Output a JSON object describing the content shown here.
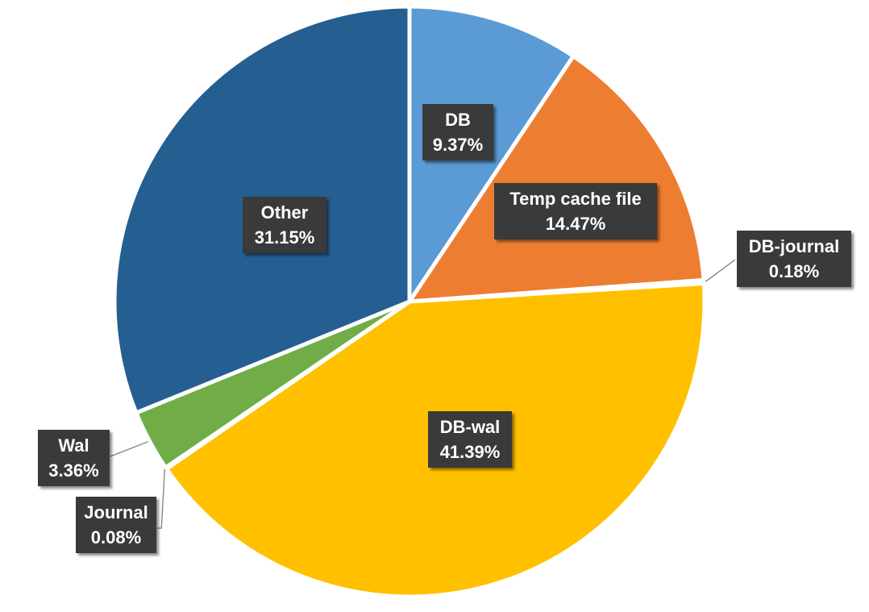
{
  "chart_data": {
    "type": "pie",
    "title": "",
    "legend": "none",
    "categories": [
      "DB",
      "Temp cache file",
      "DB-journal",
      "DB-wal",
      "Journal",
      "Wal",
      "Other"
    ],
    "values": [
      9.37,
      14.47,
      0.18,
      41.39,
      0.08,
      3.36,
      31.15
    ],
    "value_labels": [
      "9.37%",
      "14.47%",
      "0.18%",
      "41.39%",
      "0.08%",
      "3.36%",
      "31.15%"
    ],
    "colors": [
      "#5b9bd5",
      "#ed7d31",
      "#a5a5a5",
      "#ffc000",
      "#4472c4",
      "#70ad47",
      "#255e91"
    ]
  }
}
